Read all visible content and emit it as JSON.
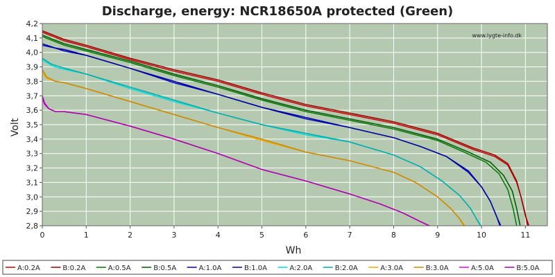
{
  "chart_data": {
    "type": "line",
    "title": "Discharge, energy: NCR18650A protected (Green)",
    "xlabel": "Wh",
    "ylabel": "Volt",
    "watermark": "www.lygte-info.dk",
    "xlim": [
      0,
      11.5
    ],
    "ylim": [
      2.8,
      4.2
    ],
    "xticks": [
      "0",
      "1",
      "2",
      "3",
      "4",
      "5",
      "6",
      "7",
      "8",
      "9",
      "10",
      "11"
    ],
    "yticks": [
      "2,8",
      "2,9",
      "3,0",
      "3,1",
      "3,2",
      "3,3",
      "3,4",
      "3,5",
      "3,6",
      "3,7",
      "3,8",
      "3,9",
      "4,0",
      "4,1",
      "4,2"
    ],
    "grid": true,
    "legend_position": "bottom",
    "background": "#b4c9b0",
    "series": [
      {
        "name": "A:0.2A",
        "color": "#cc0000",
        "x": [
          0,
          0.5,
          1,
          2,
          3,
          4,
          5,
          6,
          7,
          8,
          9,
          9.8,
          10.3,
          10.6,
          10.8,
          10.9,
          11.0,
          11.05
        ],
        "y": [
          4.14,
          4.08,
          4.04,
          3.95,
          3.87,
          3.8,
          3.71,
          3.63,
          3.57,
          3.51,
          3.43,
          3.33,
          3.28,
          3.22,
          3.1,
          3.0,
          2.88,
          2.8
        ]
      },
      {
        "name": "B:0.2A",
        "color": "#990000",
        "x": [
          0,
          0.5,
          1,
          2,
          3,
          4,
          5,
          6,
          7,
          8,
          9,
          9.8,
          10.3,
          10.6,
          10.8,
          10.9,
          11.0,
          11.08
        ],
        "y": [
          4.15,
          4.09,
          4.05,
          3.96,
          3.88,
          3.81,
          3.72,
          3.64,
          3.58,
          3.52,
          3.44,
          3.34,
          3.29,
          3.23,
          3.11,
          3.0,
          2.87,
          2.8
        ]
      },
      {
        "name": "A:0.5A",
        "color": "#007700",
        "x": [
          0,
          0.5,
          1,
          2,
          3,
          4,
          5,
          6,
          7,
          8,
          9,
          9.6,
          10.1,
          10.4,
          10.6,
          10.72,
          10.8
        ],
        "y": [
          4.11,
          4.05,
          4.01,
          3.93,
          3.84,
          3.76,
          3.67,
          3.59,
          3.53,
          3.47,
          3.39,
          3.31,
          3.24,
          3.16,
          3.05,
          2.92,
          2.8
        ]
      },
      {
        "name": "B:0.5A",
        "color": "#005500",
        "x": [
          0,
          0.5,
          1,
          2,
          3,
          4,
          5,
          6,
          7,
          8,
          9,
          9.7,
          10.2,
          10.5,
          10.7,
          10.8,
          10.88
        ],
        "y": [
          4.12,
          4.06,
          4.02,
          3.94,
          3.85,
          3.77,
          3.68,
          3.6,
          3.54,
          3.48,
          3.4,
          3.31,
          3.24,
          3.15,
          3.04,
          2.92,
          2.8
        ]
      },
      {
        "name": "A:1.0A",
        "color": "#0000cc",
        "x": [
          0,
          0.3,
          0.5,
          1,
          2,
          3,
          4,
          5,
          6,
          7,
          8,
          8.6,
          9.2,
          9.7,
          10.0,
          10.2,
          10.35,
          10.42
        ],
        "y": [
          4.05,
          4.03,
          4.01,
          3.98,
          3.89,
          3.79,
          3.71,
          3.62,
          3.54,
          3.48,
          3.41,
          3.35,
          3.28,
          3.17,
          3.07,
          2.97,
          2.86,
          2.8
        ]
      },
      {
        "name": "B:1.0A",
        "color": "#000099",
        "x": [
          0,
          0.3,
          0.5,
          1,
          2,
          3,
          4,
          5,
          6,
          7,
          8,
          8.6,
          9.2,
          9.7,
          10.0,
          10.2,
          10.35,
          10.44
        ],
        "y": [
          4.06,
          4.03,
          4.02,
          3.98,
          3.89,
          3.8,
          3.71,
          3.62,
          3.55,
          3.48,
          3.41,
          3.35,
          3.28,
          3.18,
          3.07,
          2.97,
          2.86,
          2.8
        ]
      },
      {
        "name": "A:2.0A",
        "color": "#00dddd",
        "x": [
          0,
          0.2,
          0.4,
          1,
          2,
          3,
          4,
          5,
          6,
          7,
          8,
          8.6,
          9.1,
          9.5,
          9.75,
          9.9,
          9.97
        ],
        "y": [
          3.95,
          3.91,
          3.89,
          3.85,
          3.75,
          3.66,
          3.58,
          3.5,
          3.43,
          3.38,
          3.29,
          3.21,
          3.11,
          3.01,
          2.92,
          2.84,
          2.8
        ]
      },
      {
        "name": "B:2.0A",
        "color": "#00aaaa",
        "x": [
          0,
          0.2,
          0.4,
          1,
          2,
          3,
          4,
          5,
          6,
          7,
          8,
          8.6,
          9.1,
          9.5,
          9.75,
          9.9,
          9.99
        ],
        "y": [
          3.96,
          3.92,
          3.9,
          3.85,
          3.76,
          3.67,
          3.58,
          3.5,
          3.44,
          3.38,
          3.29,
          3.21,
          3.11,
          3.01,
          2.92,
          2.84,
          2.8
        ]
      },
      {
        "name": "A:3.0A",
        "color": "#eeaa00",
        "x": [
          0,
          0.1,
          0.3,
          0.5,
          1,
          2,
          3,
          4,
          5,
          6,
          7,
          8,
          8.5,
          9.0,
          9.3,
          9.5,
          9.62
        ],
        "y": [
          3.86,
          3.82,
          3.8,
          3.79,
          3.75,
          3.66,
          3.57,
          3.48,
          3.39,
          3.31,
          3.25,
          3.17,
          3.1,
          3.0,
          2.92,
          2.85,
          2.8
        ]
      },
      {
        "name": "B:3.0A",
        "color": "#cc8800",
        "x": [
          0,
          0.1,
          0.3,
          0.5,
          1,
          2,
          3,
          4,
          5,
          6,
          7,
          8,
          8.5,
          9.0,
          9.3,
          9.5,
          9.6
        ],
        "y": [
          3.88,
          3.83,
          3.8,
          3.79,
          3.75,
          3.66,
          3.57,
          3.48,
          3.4,
          3.31,
          3.25,
          3.17,
          3.1,
          3.0,
          2.92,
          2.85,
          2.8
        ]
      },
      {
        "name": "A:5.0A",
        "color": "#ee00ee",
        "x": [
          0,
          0.05,
          0.15,
          0.3,
          0.5,
          1,
          2,
          3,
          4,
          5,
          6,
          7,
          7.7,
          8.2,
          8.6,
          8.8
        ],
        "y": [
          3.68,
          3.64,
          3.61,
          3.59,
          3.59,
          3.57,
          3.49,
          3.4,
          3.3,
          3.19,
          3.11,
          3.02,
          2.95,
          2.89,
          2.83,
          2.8
        ]
      },
      {
        "name": "B:5.0A",
        "color": "#aa00aa",
        "x": [
          0,
          0.05,
          0.15,
          0.3,
          0.5,
          1,
          2,
          3,
          4,
          5,
          6,
          7,
          7.7,
          8.2,
          8.6,
          8.82
        ],
        "y": [
          3.7,
          3.65,
          3.61,
          3.59,
          3.59,
          3.57,
          3.49,
          3.4,
          3.3,
          3.19,
          3.11,
          3.02,
          2.95,
          2.89,
          2.83,
          2.8
        ]
      }
    ]
  }
}
